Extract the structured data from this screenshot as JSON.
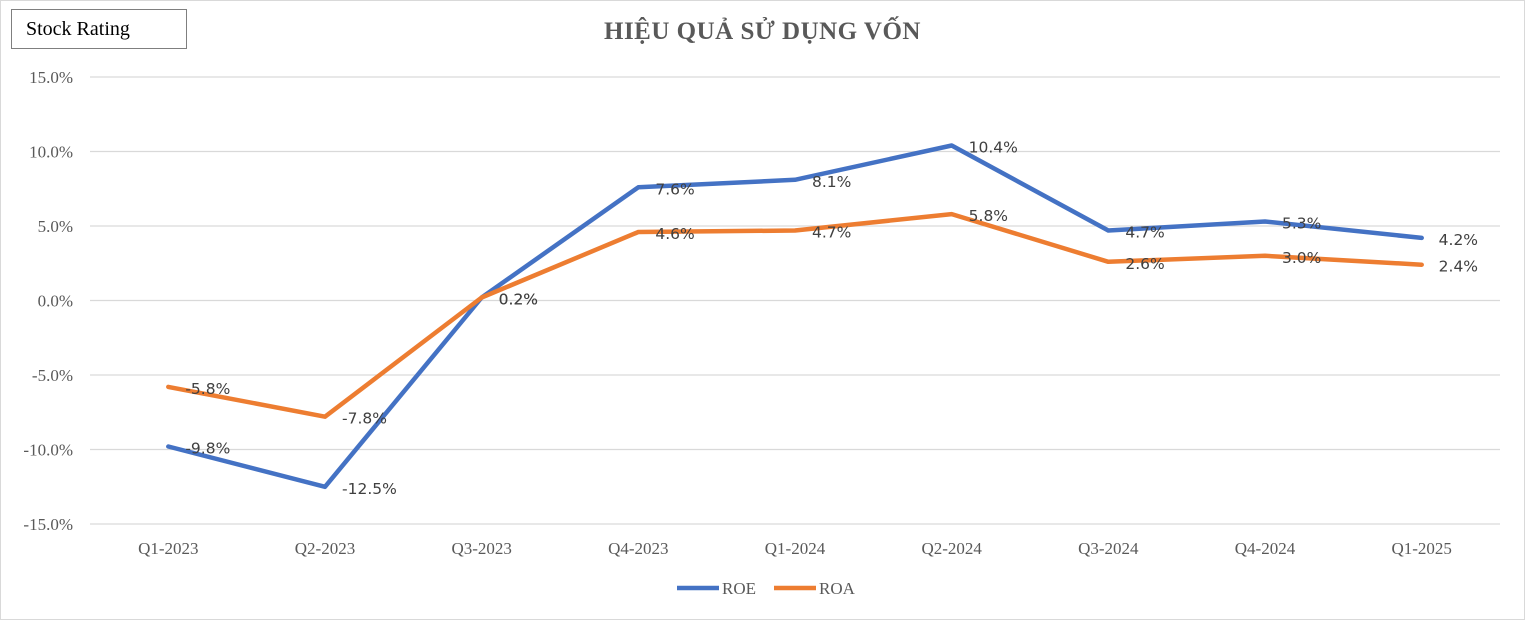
{
  "badge": {
    "label": "Stock Rating"
  },
  "chart_data": {
    "type": "line",
    "title": "HIỆU QUẢ SỬ DỤNG VỐN",
    "xlabel": "",
    "ylabel": "",
    "categories": [
      "Q1-2023",
      "Q2-2023",
      "Q3-2023",
      "Q4-2023",
      "Q1-2024",
      "Q2-2024",
      "Q3-2024",
      "Q4-2024",
      "Q1-2025"
    ],
    "ylim": [
      -15,
      15
    ],
    "yticks": [
      15,
      10,
      5,
      0,
      -5,
      -10,
      -15
    ],
    "ytick_labels": [
      "15.0%",
      "10.0%",
      "5.0%",
      "0.0%",
      "-5.0%",
      "-10.0%",
      "-15.0%"
    ],
    "grid": true,
    "legend": "bottom-center",
    "series": [
      {
        "name": "ROE",
        "color": "#4472c4",
        "values": [
          -9.8,
          -12.5,
          0.2,
          7.6,
          8.1,
          10.4,
          4.7,
          5.3,
          4.2
        ],
        "labels": [
          "-9.8%",
          "-12.5%",
          "0.2%",
          "7.6%",
          "8.1%",
          "10.4%",
          "4.7%",
          "5.3%",
          "4.2%"
        ]
      },
      {
        "name": "ROA",
        "color": "#ed7d31",
        "values": [
          -5.8,
          -7.8,
          0.2,
          4.6,
          4.7,
          5.8,
          2.6,
          3.0,
          2.4
        ],
        "labels": [
          "-5.8%",
          "-7.8%",
          "0.2%",
          "4.6%",
          "4.7%",
          "5.8%",
          "2.6%",
          "3.0%",
          "2.4%"
        ]
      }
    ]
  }
}
